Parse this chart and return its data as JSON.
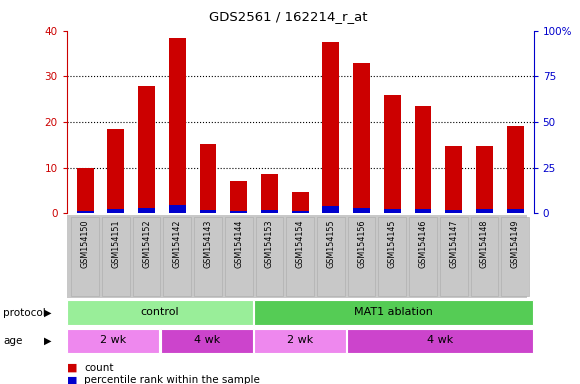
{
  "title": "GDS2561 / 162214_r_at",
  "samples": [
    "GSM154150",
    "GSM154151",
    "GSM154152",
    "GSM154142",
    "GSM154143",
    "GSM154144",
    "GSM154153",
    "GSM154154",
    "GSM154155",
    "GSM154156",
    "GSM154145",
    "GSM154146",
    "GSM154147",
    "GSM154148",
    "GSM154149"
  ],
  "count_values": [
    9.8,
    18.5,
    27.8,
    38.5,
    15.2,
    7.0,
    8.5,
    4.7,
    37.5,
    33.0,
    25.8,
    23.5,
    14.7,
    14.7,
    19.0
  ],
  "percentile_values": [
    1.0,
    2.5,
    3.0,
    4.2,
    1.8,
    1.2,
    1.5,
    1.0,
    4.0,
    3.0,
    2.5,
    2.5,
    1.5,
    2.0,
    2.5
  ],
  "bar_color_red": "#CC0000",
  "bar_color_blue": "#0000CC",
  "ylim_left": [
    0,
    40
  ],
  "ylim_right": [
    0,
    100
  ],
  "yticks_left": [
    0,
    10,
    20,
    30,
    40
  ],
  "yticks_right": [
    0,
    25,
    50,
    75,
    100
  ],
  "ytick_labels_right": [
    "0",
    "25",
    "50",
    "75",
    "100%"
  ],
  "left_axis_color": "#CC0000",
  "right_axis_color": "#0000CC",
  "legend_count_label": "count",
  "legend_pct_label": "percentile rank within the sample",
  "protocol_row_label": "protocol",
  "age_row_label": "age",
  "bar_width": 0.55,
  "tick_bg_color": "#C8C8C8",
  "protocol_light_green": "#99EE99",
  "protocol_dark_green": "#55CC55",
  "age_light_violet": "#EE88EE",
  "age_dark_violet": "#CC44CC"
}
